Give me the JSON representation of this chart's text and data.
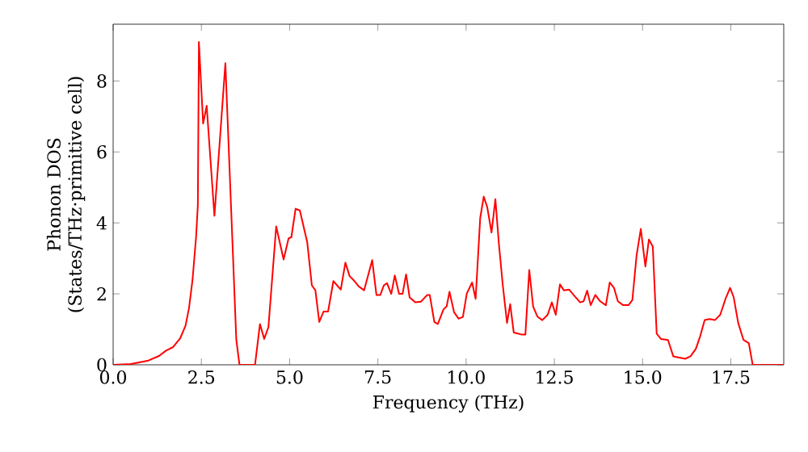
{
  "chart_data": {
    "type": "line",
    "xlabel": "Frequency (THz)",
    "ylabel": "Phonon DOS\n(States/THz·primitive cell)",
    "x": [
      0,
      0.5,
      1.0,
      1.3,
      1.5,
      1.7,
      1.9,
      2.05,
      2.15,
      2.25,
      2.35,
      2.4,
      2.43,
      2.55,
      2.65,
      2.87,
      3.18,
      3.49,
      3.58,
      4.02,
      4.16,
      4.28,
      4.4,
      4.62,
      4.83,
      4.97,
      5.05,
      5.17,
      5.29,
      5.5,
      5.63,
      5.73,
      5.84,
      5.96,
      6.09,
      6.24,
      6.45,
      6.58,
      6.7,
      6.8,
      6.96,
      7.11,
      7.34,
      7.46,
      7.57,
      7.67,
      7.76,
      7.88,
      7.98,
      8.1,
      8.2,
      8.3,
      8.4,
      8.56,
      8.72,
      8.9,
      8.97,
      9.1,
      9.2,
      9.36,
      9.45,
      9.53,
      9.66,
      9.79,
      9.91,
      10.02,
      10.17,
      10.27,
      10.4,
      10.5,
      10.6,
      10.72,
      10.83,
      10.93,
      11.04,
      11.16,
      11.25,
      11.35,
      11.47,
      11.58,
      11.68,
      11.79,
      11.9,
      12.02,
      12.16,
      12.31,
      12.43,
      12.54,
      12.66,
      12.77,
      12.92,
      13.07,
      13.23,
      13.33,
      13.43,
      13.53,
      13.66,
      13.8,
      13.96,
      14.07,
      14.19,
      14.3,
      14.45,
      14.6,
      14.71,
      14.83,
      14.95,
      15.08,
      15.18,
      15.29,
      15.4,
      15.52,
      15.72,
      15.87,
      16.06,
      16.21,
      16.36,
      16.51,
      16.63,
      16.76,
      16.9,
      17.05,
      17.2,
      17.35,
      17.48,
      17.58,
      17.71,
      17.86,
      18.01,
      18.12,
      19.0
    ],
    "series": [
      {
        "color": "#ff0000",
        "values": [
          0,
          0.02,
          0.12,
          0.25,
          0.4,
          0.5,
          0.75,
          1.1,
          1.6,
          2.4,
          3.6,
          4.5,
          9.1,
          6.8,
          7.3,
          4.2,
          8.5,
          0.7,
          0,
          0,
          1.15,
          0.73,
          1.06,
          3.9,
          2.97,
          3.56,
          3.6,
          4.4,
          4.35,
          3.45,
          2.24,
          2.1,
          1.21,
          1.5,
          1.5,
          2.36,
          2.12,
          2.88,
          2.5,
          2.4,
          2.21,
          2.1,
          2.95,
          1.97,
          1.97,
          2.24,
          2.3,
          2.0,
          2.52,
          2.0,
          2.0,
          2.55,
          1.9,
          1.76,
          1.78,
          1.97,
          1.97,
          1.21,
          1.15,
          1.56,
          1.65,
          2.06,
          1.48,
          1.3,
          1.35,
          2.01,
          2.32,
          1.86,
          4.14,
          4.74,
          4.44,
          3.73,
          4.67,
          3.4,
          2.24,
          1.18,
          1.71,
          0.91,
          0.88,
          0.85,
          0.85,
          2.67,
          1.64,
          1.36,
          1.26,
          1.41,
          1.76,
          1.41,
          2.27,
          2.1,
          2.12,
          1.94,
          1.76,
          1.79,
          2.09,
          1.68,
          1.97,
          1.79,
          1.68,
          2.32,
          2.17,
          1.79,
          1.68,
          1.68,
          1.82,
          3.08,
          3.83,
          2.77,
          3.53,
          3.33,
          0.88,
          0.73,
          0.7,
          0.24,
          0.2,
          0.17,
          0.24,
          0.45,
          0.8,
          1.26,
          1.29,
          1.26,
          1.41,
          1.86,
          2.17,
          1.91,
          1.18,
          0.7,
          0.61,
          0,
          0
        ]
      }
    ],
    "xlim": [
      0,
      19.0
    ],
    "ylim": [
      0,
      9.6
    ],
    "xticks": [
      {
        "value": 0,
        "label": "0.0"
      },
      {
        "value": 2.5,
        "label": "2.5"
      },
      {
        "value": 5,
        "label": "5.0"
      },
      {
        "value": 7.5,
        "label": "7.5"
      },
      {
        "value": 10,
        "label": "10.0"
      },
      {
        "value": 12.5,
        "label": "12.5"
      },
      {
        "value": 15,
        "label": "15.0"
      },
      {
        "value": 17.5,
        "label": "17.5"
      }
    ],
    "yticks": [
      0,
      2,
      4,
      6,
      8
    ],
    "grid": false,
    "marker": "none",
    "line_style": "solid"
  }
}
